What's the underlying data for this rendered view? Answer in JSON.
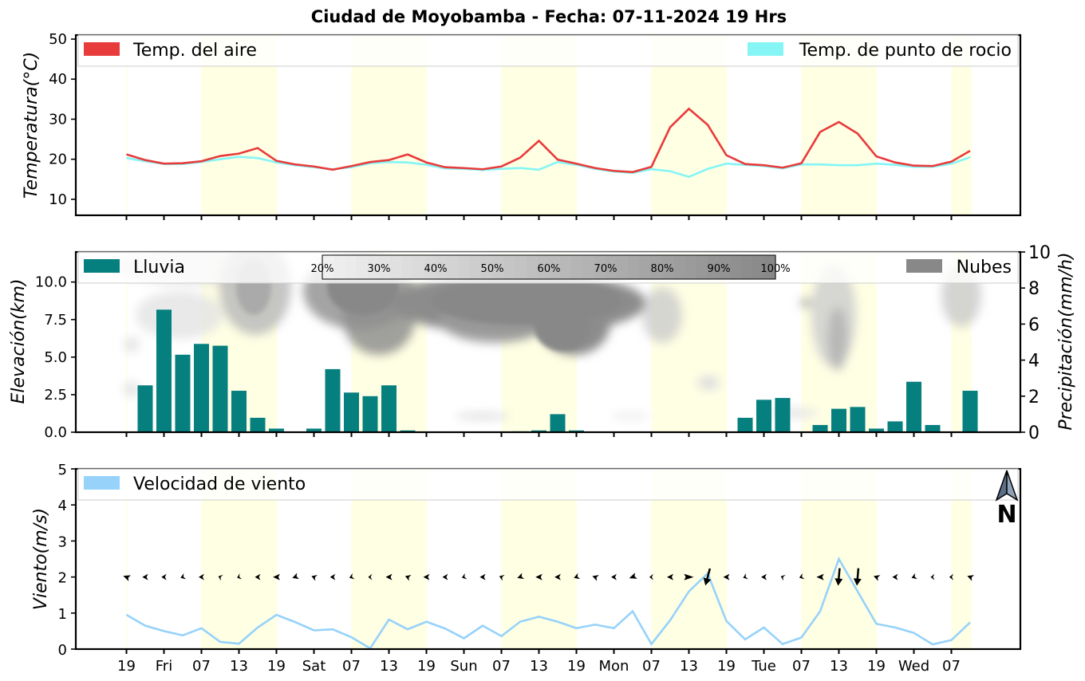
{
  "title": "Ciudad de Moyobamba   -   Fecha: 07-11-2024 19 Hrs",
  "x_tick_labels": [
    "19",
    "Fri",
    "07",
    "13",
    "19",
    "Sat",
    "07",
    "13",
    "19",
    "Sun",
    "07",
    "13",
    "19",
    "Mon",
    "07",
    "13",
    "19",
    "Tue",
    "07",
    "13",
    "19",
    "Wed",
    "07"
  ],
  "day_shading_color": "#ffffe4",
  "chart_data": [
    {
      "type": "line",
      "name": "temperature",
      "ylabel": "Temperatura(°C)",
      "ylim": [
        6,
        51
      ],
      "yticks": [
        "10",
        "20",
        "30",
        "40",
        "50"
      ],
      "legend_placement": "top",
      "series": [
        {
          "name": "Temp. del aire",
          "color": "#e83b3b",
          "values": [
            21.2,
            19.8,
            18.9,
            19.0,
            19.5,
            20.8,
            21.4,
            22.8,
            19.6,
            18.7,
            18.2,
            17.4,
            18.3,
            19.3,
            19.8,
            21.2,
            19.2,
            18.0,
            17.8,
            17.5,
            18.2,
            20.4,
            24.6,
            19.9,
            18.9,
            17.8,
            17.1,
            16.8,
            18.1,
            28.0,
            32.6,
            28.6,
            21.0,
            18.8,
            18.5,
            17.9,
            19.0,
            26.8,
            29.3,
            26.4,
            20.7,
            19.2,
            18.4,
            18.3,
            19.4,
            22.1
          ]
        },
        {
          "name": "Temp. de punto de rocio",
          "color": "#85f5f5",
          "values": [
            20.3,
            19.5,
            18.8,
            18.8,
            19.3,
            20.0,
            20.6,
            20.3,
            19.2,
            18.5,
            18.0,
            17.5,
            18.0,
            19.0,
            19.3,
            19.2,
            18.6,
            17.7,
            17.6,
            17.3,
            17.6,
            17.8,
            17.4,
            19.3,
            18.6,
            17.6,
            16.9,
            16.6,
            17.5,
            17.0,
            15.6,
            17.6,
            18.9,
            18.6,
            18.3,
            17.7,
            18.7,
            18.7,
            18.5,
            18.5,
            18.9,
            18.6,
            18.1,
            18.1,
            18.9,
            20.5
          ]
        }
      ]
    },
    {
      "type": "bar",
      "name": "precipitation-and-clouds",
      "ylabel_left": "Elevación(km)",
      "ylabel_right": "Precipitación(mm/h)",
      "ylim_left": [
        0,
        12
      ],
      "yticks_left": [
        "0.0",
        "2.5",
        "5.0",
        "7.5",
        "10.0"
      ],
      "ylim_right": [
        0,
        10
      ],
      "yticks_right": [
        "0",
        "2",
        "4",
        "6",
        "8",
        "10"
      ],
      "series": [
        {
          "name": "Lluvia",
          "color": "#067f7f",
          "values": [
            0.0,
            2.6,
            6.8,
            4.3,
            4.9,
            4.8,
            2.3,
            0.8,
            0.2,
            0.0,
            0.2,
            3.5,
            2.2,
            2.0,
            2.6,
            0.1,
            0.0,
            0.0,
            0.0,
            0.0,
            0.0,
            0.05,
            0.1,
            1.0,
            0.1,
            0.0,
            0.0,
            0.0,
            0.0,
            0.0,
            0.0,
            0.0,
            0.0,
            0.8,
            1.8,
            1.9,
            0.0,
            0.4,
            1.3,
            1.4,
            0.2,
            0.6,
            2.8,
            0.4,
            0.0,
            2.3
          ]
        },
        {
          "name": "Nubes",
          "color": "#888888"
        }
      ],
      "cloud_cover_colorbar": [
        "20%",
        "30%",
        "40%",
        "50%",
        "60%",
        "70%",
        "80%",
        "90%",
        "100%"
      ]
    },
    {
      "type": "line",
      "name": "wind",
      "ylabel": "Viento(m/s)",
      "ylim": [
        0,
        5
      ],
      "yticks": [
        "0",
        "1",
        "2",
        "3",
        "4",
        "5"
      ],
      "north_label": "N",
      "series": [
        {
          "name": "Velocidad de viento",
          "color": "#96d2fa",
          "values": [
            0.95,
            0.65,
            0.5,
            0.38,
            0.58,
            0.2,
            0.15,
            0.6,
            0.95,
            0.75,
            0.52,
            0.55,
            0.33,
            0.02,
            0.82,
            0.55,
            0.76,
            0.57,
            0.3,
            0.65,
            0.36,
            0.76,
            0.9,
            0.76,
            0.58,
            0.68,
            0.58,
            1.05,
            0.14,
            0.8,
            1.6,
            2.1,
            0.78,
            0.27,
            0.6,
            0.14,
            0.32,
            1.05,
            2.5,
            1.6,
            0.7,
            0.6,
            0.45,
            0.13,
            0.25,
            0.74
          ]
        }
      ]
    }
  ]
}
